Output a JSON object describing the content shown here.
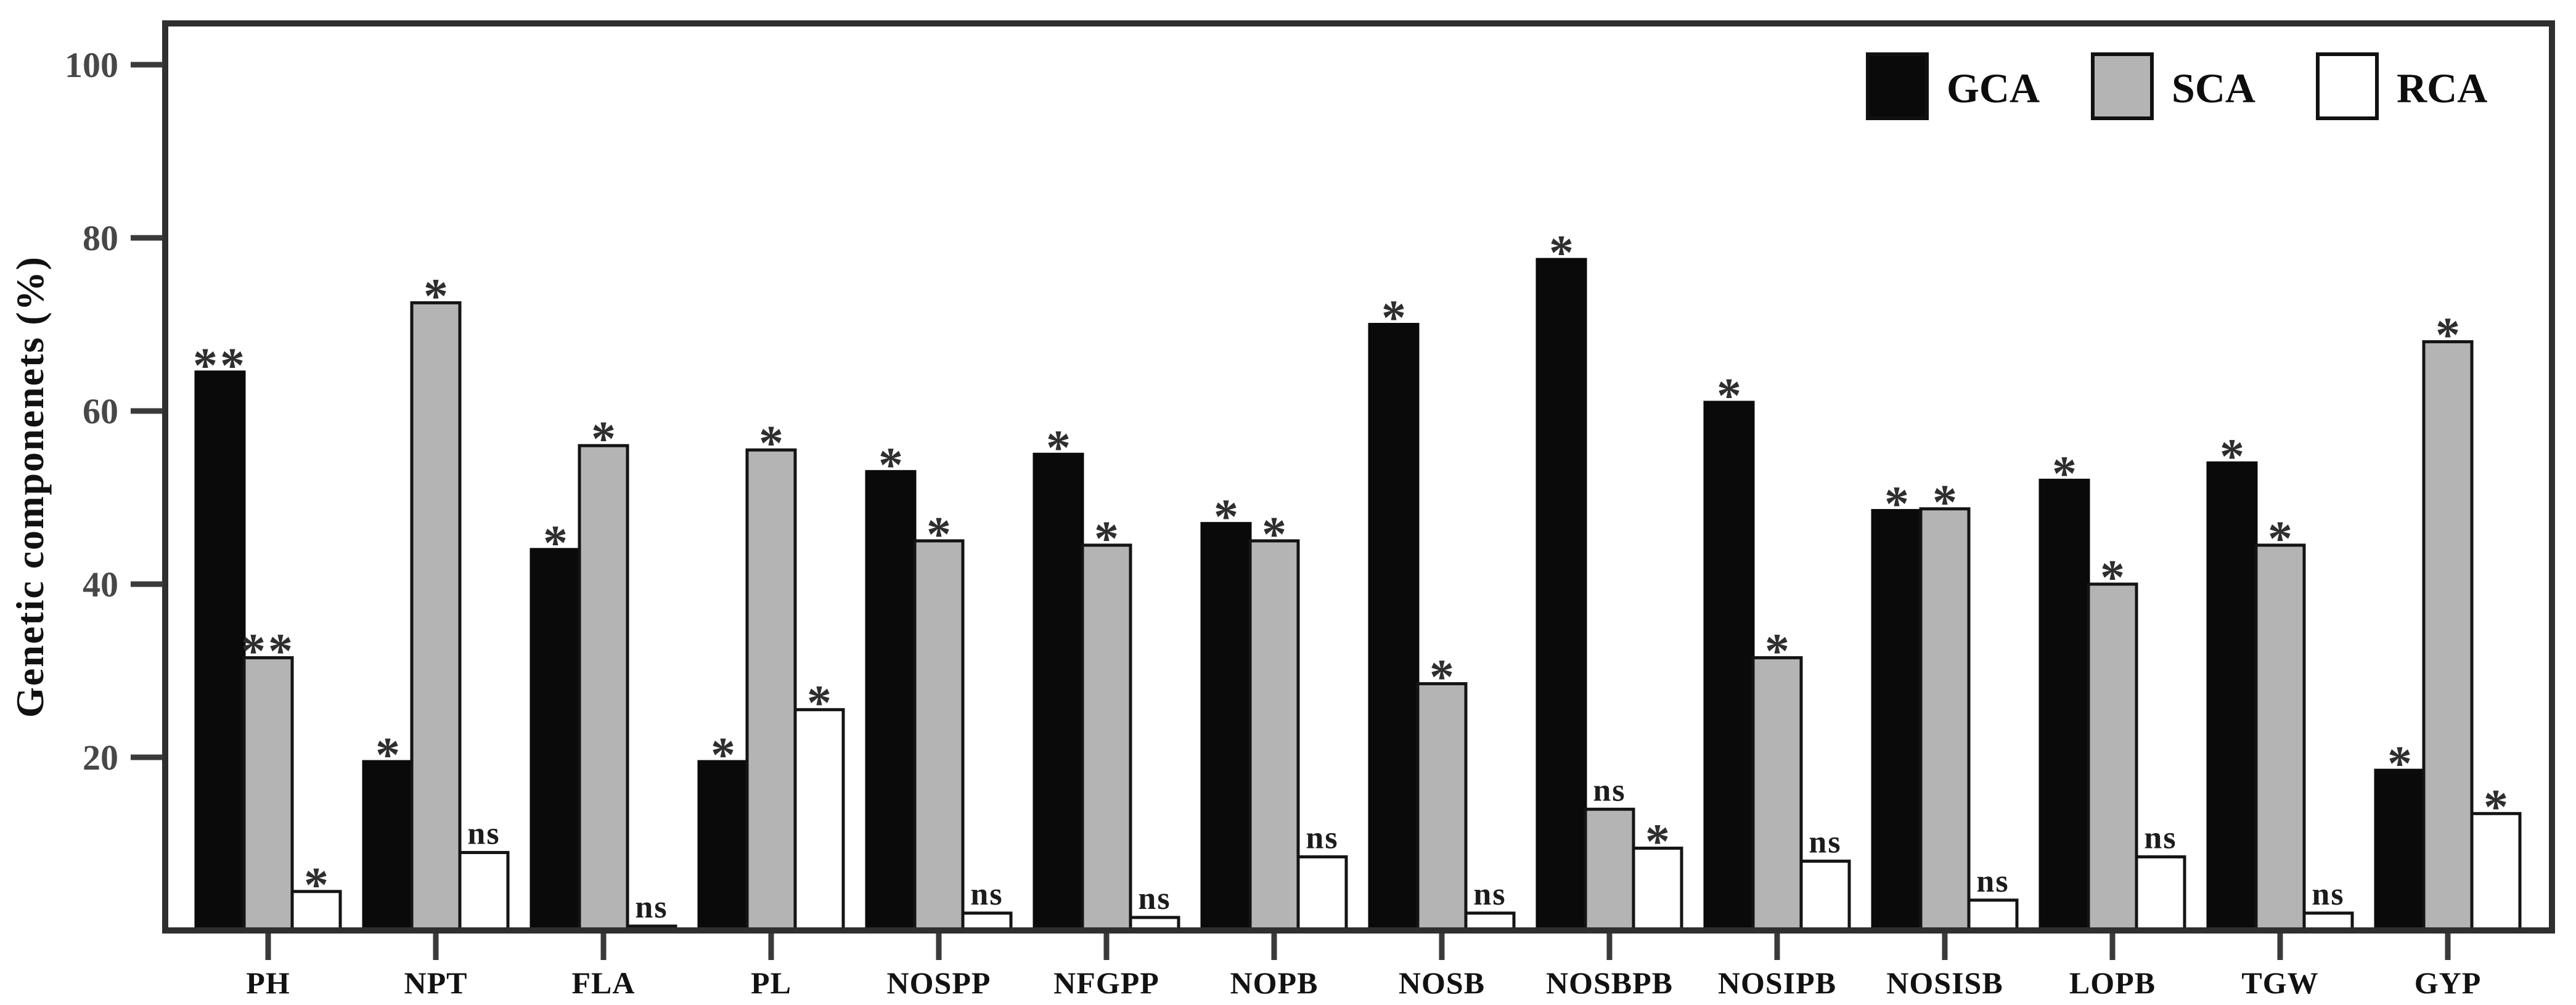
{
  "y_axis": {
    "label": "Genetic componenets (%)",
    "ticks": [
      20,
      40,
      60,
      80,
      100
    ]
  },
  "legend": {
    "items": [
      "GCA",
      "SCA",
      "RCA"
    ]
  },
  "chart_data": {
    "type": "bar",
    "title": "",
    "xlabel": "",
    "ylabel": "Genetic componenets (%)",
    "ylim": [
      0,
      105
    ],
    "yticks": [
      20,
      40,
      60,
      80,
      100
    ],
    "grid": false,
    "legend_position": "top-right-inside",
    "categories": [
      "PH",
      "NPT",
      "FLA",
      "PL",
      "NOSPP",
      "NFGPP",
      "NOPB",
      "NOSB",
      "NOSBPB",
      "NOSIPB",
      "NOSISB",
      "LOPB",
      "TGW",
      "GYP"
    ],
    "series": [
      {
        "name": "GCA",
        "color": "#0a0a0a",
        "border": "#0a0a0a",
        "values": [
          64.5,
          19.5,
          44,
          19.5,
          53,
          55,
          47,
          70,
          77.5,
          61,
          48.5,
          52,
          54,
          18.5
        ],
        "significance": [
          "**",
          "*",
          "*",
          "*",
          "*",
          "*",
          "*",
          "*",
          "*",
          "*",
          "*",
          "*",
          "*",
          "*"
        ]
      },
      {
        "name": "SCA",
        "color": "#b4b4b4",
        "border": "#141414",
        "values": [
          31.5,
          72.5,
          56,
          55.5,
          45,
          44.5,
          45,
          28.5,
          14,
          31.5,
          48.7,
          40,
          44.5,
          68
        ],
        "significance": [
          "**",
          "*",
          "*",
          "*",
          "*",
          "*",
          "*",
          "*",
          "ns",
          "*",
          "*",
          "*",
          "*",
          "*"
        ]
      },
      {
        "name": "RCA",
        "color": "#ffffff",
        "border": "#141414",
        "values": [
          4.5,
          9,
          0.5,
          25.5,
          2,
          1.5,
          8.5,
          2,
          9.5,
          8,
          3.5,
          8.5,
          2,
          13.5
        ],
        "significance": [
          "*",
          "ns",
          "ns",
          "*",
          "ns",
          "ns",
          "ns",
          "ns",
          "*",
          "ns",
          "ns",
          "ns",
          "ns",
          "*"
        ]
      }
    ]
  }
}
